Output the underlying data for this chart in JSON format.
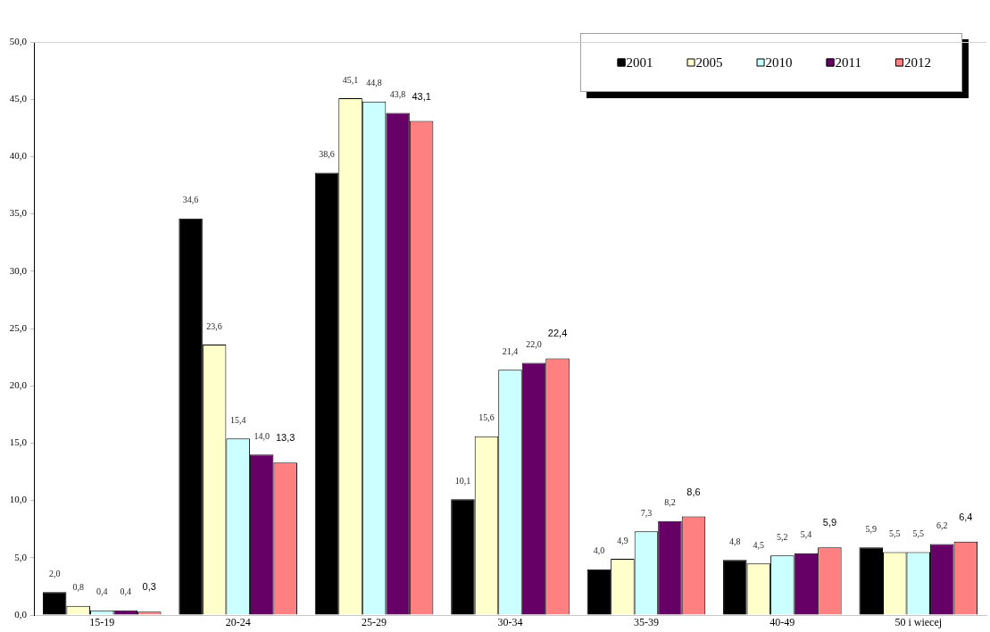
{
  "chart_data": {
    "type": "bar",
    "categories": [
      "15-19",
      "20-24",
      "25-29",
      "30-34",
      "35-39",
      "40-49",
      "50 i wiecej"
    ],
    "series": [
      {
        "name": "2001",
        "color": "#000000",
        "values": [
          2.0,
          34.6,
          38.6,
          10.1,
          4.0,
          4.8,
          5.9
        ],
        "value_labels": [
          "2,0",
          "34,6",
          "38,6",
          "10,1",
          "4,0",
          "4,8",
          "5,9"
        ]
      },
      {
        "name": "2005",
        "color": "#ffffcc",
        "values": [
          0.8,
          23.6,
          45.1,
          15.6,
          4.9,
          4.5,
          5.5
        ],
        "value_labels": [
          "0,8",
          "23,6",
          "45,1",
          "15,6",
          "4,9",
          "4,5",
          "5,5"
        ]
      },
      {
        "name": "2010",
        "color": "#ccffff",
        "values": [
          0.4,
          15.4,
          44.8,
          21.4,
          7.3,
          5.2,
          5.5
        ],
        "value_labels": [
          "0,4",
          "15,4",
          "44,8",
          "21,4",
          "7,3",
          "5,2",
          "5,5"
        ]
      },
      {
        "name": "2011",
        "color": "#660066",
        "values": [
          0.4,
          14.0,
          43.8,
          22.0,
          8.2,
          5.4,
          6.2
        ],
        "value_labels": [
          "0,4",
          "14,0",
          "43,8",
          "22,0",
          "8,2",
          "5,4",
          "6,2"
        ]
      },
      {
        "name": "2012",
        "color": "#ff8080",
        "values": [
          0.3,
          13.3,
          43.1,
          22.4,
          8.6,
          5.9,
          6.4
        ],
        "value_labels": [
          "0,3",
          "13,3",
          "43,1",
          "22,4",
          "8,6",
          "5,9",
          "6,4"
        ]
      }
    ],
    "ylim": [
      0,
      50
    ],
    "yticks": [
      {
        "value": 0,
        "label": "0,0"
      },
      {
        "value": 5,
        "label": "5,0"
      },
      {
        "value": 10,
        "label": "10,0"
      },
      {
        "value": 15,
        "label": "15,0"
      },
      {
        "value": 20,
        "label": "20,0"
      },
      {
        "value": 25,
        "label": "25,0"
      },
      {
        "value": 30,
        "label": "30,0"
      },
      {
        "value": 35,
        "label": "35,0"
      },
      {
        "value": 40,
        "label": "40,0"
      },
      {
        "value": 45,
        "label": "45,0"
      },
      {
        "value": 50,
        "label": "50,0"
      }
    ],
    "legend": "top right"
  }
}
